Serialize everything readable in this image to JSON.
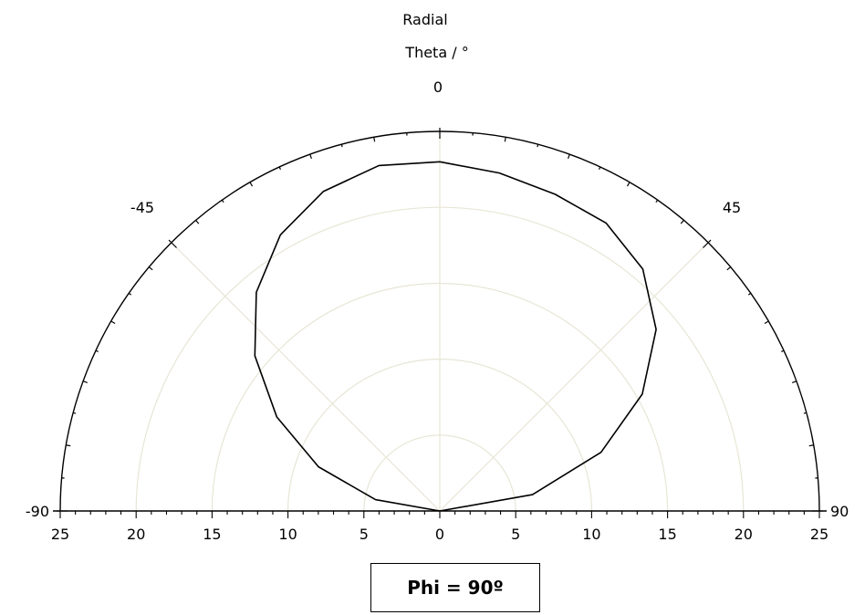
{
  "chart_data": {
    "type": "polar-line",
    "title": "Radial",
    "angle_axis_label": "Theta / °",
    "angle_ticks": [
      "-90",
      "-45",
      "0",
      "45",
      "90"
    ],
    "angle_range": [
      -90,
      90
    ],
    "radial_range": [
      0,
      25
    ],
    "radial_ticks": [
      "25",
      "20",
      "15",
      "10",
      "5",
      "0",
      "5",
      "10",
      "15",
      "20",
      "25"
    ],
    "grid": true,
    "series": [
      {
        "theta": [
          -90,
          -80,
          -70,
          -60,
          -50,
          -40,
          -30,
          -20,
          -10,
          0,
          10,
          20,
          30,
          40,
          50,
          60,
          70,
          80,
          90
        ],
        "r": [
          0.0,
          4.3,
          8.5,
          12.4,
          15.9,
          18.8,
          21.0,
          22.4,
          23.1,
          23.0,
          22.6,
          22.2,
          21.9,
          20.8,
          18.6,
          15.4,
          11.3,
          6.2,
          0.0
        ]
      }
    ],
    "annotation": "Phi  =  90º"
  }
}
